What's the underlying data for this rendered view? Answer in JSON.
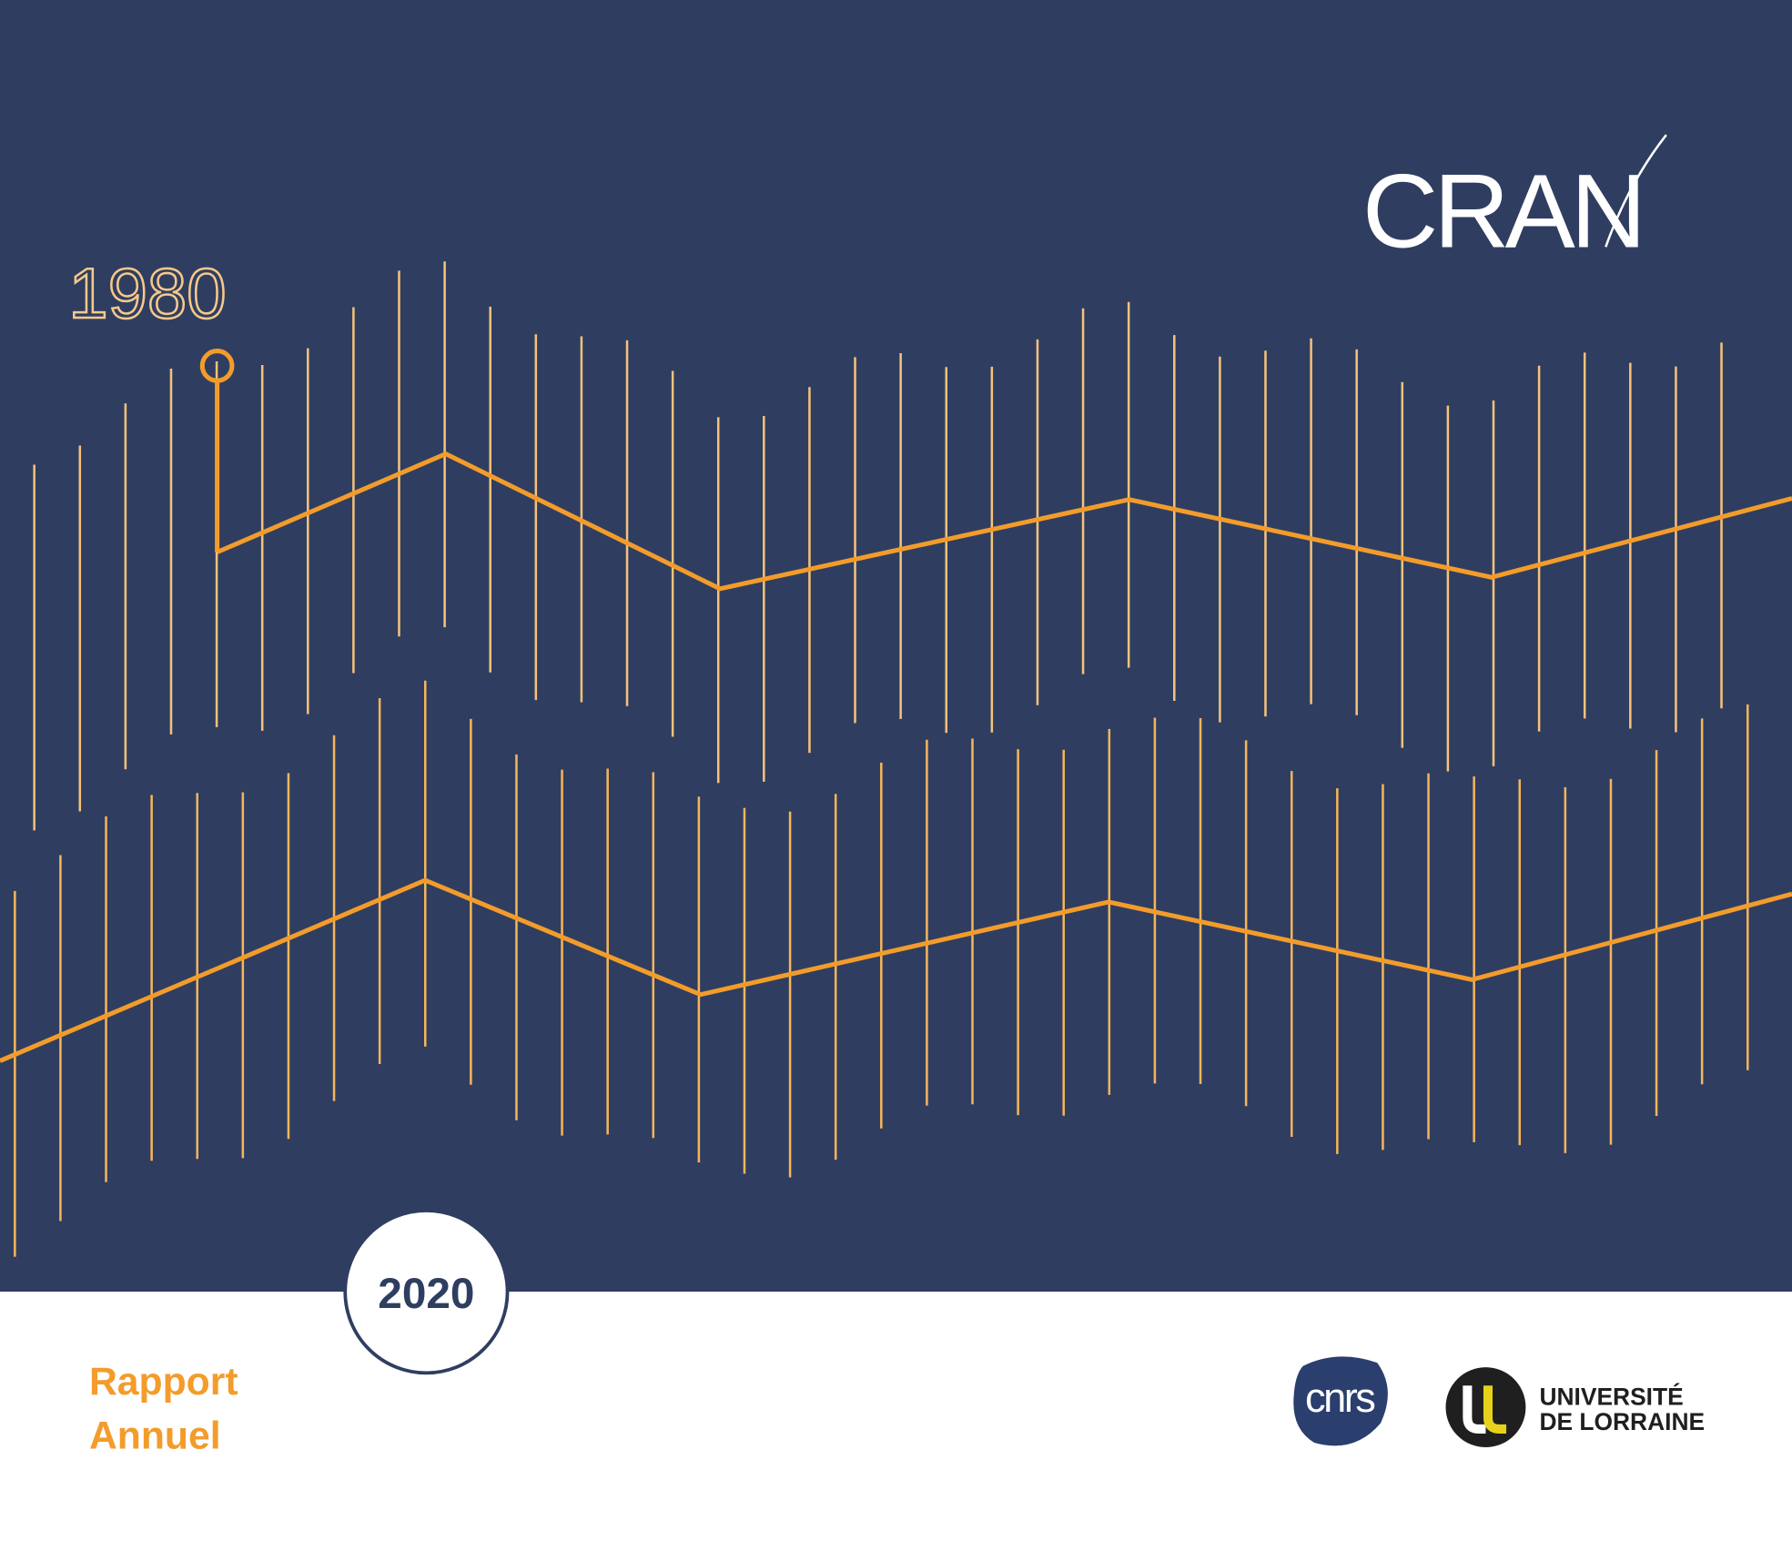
{
  "logo": {
    "text": "CRAN"
  },
  "timeline": {
    "start": "1980"
  },
  "badge": {
    "year": "2020"
  },
  "title": {
    "line1": "Rapport",
    "line2": "Annuel"
  },
  "partners": {
    "cnrs": "cnrs",
    "university": {
      "line1": "UNIVERSITÉ",
      "line2": "DE LORRAINE"
    }
  }
}
